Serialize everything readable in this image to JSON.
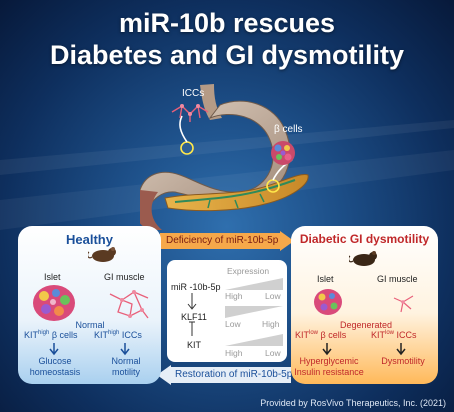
{
  "title": {
    "line1": "miR-10b rescues",
    "line2": "Diabetes and GI dysmotility"
  },
  "organ_labels": {
    "iccs": "ICCs",
    "beta_cells": "β cells"
  },
  "healthy": {
    "title": "Healthy",
    "islet": "Islet",
    "gi_muscle": "GI muscle",
    "normal": "Normal",
    "kit_beta": "KIT",
    "kit_beta_sup": "high",
    "beta_cells": "β cells",
    "kit_iccs": "KIT",
    "kit_iccs_sup": "high",
    "iccs": "ICCs",
    "outcome_left_1": "Glucose",
    "outcome_left_2": "homeostasis",
    "outcome_right_1": "Normal",
    "outcome_right_2": "motility"
  },
  "diseased": {
    "title": "Diabetic GI dysmotility",
    "islet": "Islet",
    "gi_muscle": "GI muscle",
    "degenerated": "Degenerated",
    "kit_beta": "KIT",
    "kit_beta_sup": "low",
    "beta_cells": "β cells",
    "kit_iccs": "KIT",
    "kit_iccs_sup": "low",
    "iccs": "ICCs",
    "outcome_left_1": "Hyperglycemic",
    "outcome_left_2": "Insulin resistance",
    "outcome_right_1": "Dysmotility"
  },
  "middle": {
    "expression_header": "Expression",
    "genes": [
      "miR -10b-5p",
      "KLF11",
      "KIT"
    ],
    "row1_left": "High",
    "row1_right": "Low",
    "row2_left": "Low",
    "row2_right": "High",
    "row3_left": "High",
    "row3_right": "Low"
  },
  "arrows": {
    "top": "Deficiency of miR-10b-5p",
    "bottom": "Restoration of miR-10b-5p"
  },
  "credit": "Provided by RosVivo Therapeutics, Inc. (2021)",
  "colors": {
    "healthy_title": "#1a4f9a",
    "diseased_title": "#c0282a",
    "arrow_fill": "#f6a84a"
  }
}
